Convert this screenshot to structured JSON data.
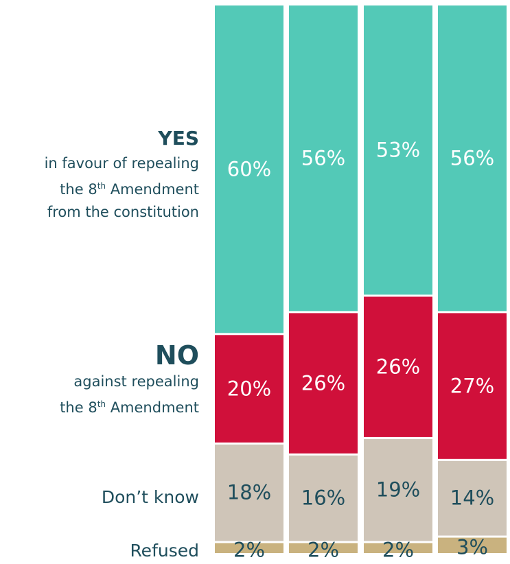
{
  "chart_data": {
    "type": "bar",
    "stacked": true,
    "orientation": "vertical",
    "categories": [
      "",
      "",
      "",
      ""
    ],
    "series": [
      {
        "key": "yes",
        "name": "YES",
        "color": "#53c9b7",
        "values": [
          60,
          56,
          53,
          56
        ],
        "labels": [
          "60%",
          "56%",
          "53%",
          "56%"
        ]
      },
      {
        "key": "no",
        "name": "NO",
        "color": "#d0103a",
        "values": [
          20,
          26,
          26,
          27
        ],
        "labels": [
          "20%",
          "26%",
          "26%",
          "27%"
        ]
      },
      {
        "key": "dont_know",
        "name": "Don’t know",
        "color": "#cfc5b8",
        "values": [
          18,
          16,
          19,
          14
        ],
        "labels": [
          "18%",
          "16%",
          "19%",
          "14%"
        ]
      },
      {
        "key": "refused",
        "name": "Refused",
        "color": "#c9b27f",
        "values": [
          2,
          2,
          2,
          3
        ],
        "labels": [
          "2%",
          "2%",
          "2%",
          "3%"
        ]
      }
    ],
    "ylim": [
      0,
      100
    ],
    "title": "",
    "xlabel": "",
    "ylabel": "",
    "grid": false,
    "legend_placement": "left"
  },
  "legend": {
    "yes_title": "YES",
    "yes_line1": "in favour of repealing",
    "yes_line2_pre": "the 8",
    "yes_line2_sup": "th",
    "yes_line2_post": " Amendment",
    "yes_line3": "from the constitution",
    "no_title": "NO",
    "no_line1": "against repealing",
    "no_line2_pre": "the 8",
    "no_line2_sup": "th",
    "no_line2_post": " Amendment",
    "dont_know": "Don’t know",
    "refused": "Refused"
  }
}
